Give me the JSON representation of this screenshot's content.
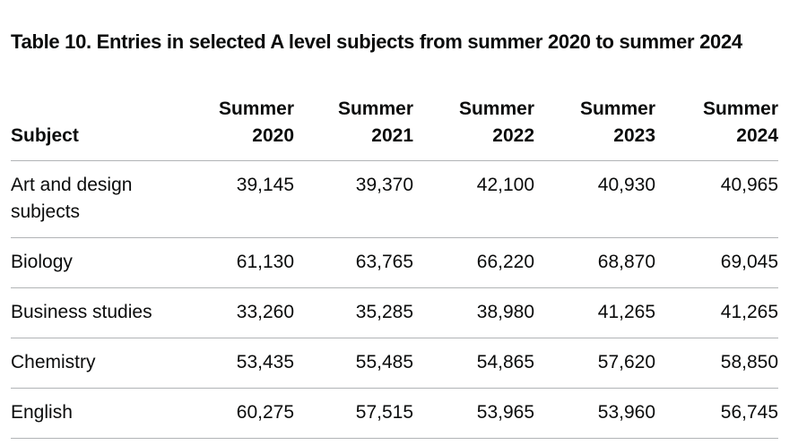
{
  "title": "Table 10. Entries in selected A level subjects from summer 2020 to summer 2024",
  "table": {
    "columns": {
      "subject": "Subject",
      "years": [
        {
          "line1": "Summer",
          "line2": "2020"
        },
        {
          "line1": "Summer",
          "line2": "2021"
        },
        {
          "line1": "Summer",
          "line2": "2022"
        },
        {
          "line1": "Summer",
          "line2": "2023"
        },
        {
          "line1": "Summer",
          "line2": "2024"
        }
      ]
    },
    "rows": [
      {
        "subject": "Art and design subjects",
        "values": [
          "39,145",
          "39,370",
          "42,100",
          "40,930",
          "40,965"
        ]
      },
      {
        "subject": "Biology",
        "values": [
          "61,130",
          "63,765",
          "66,220",
          "68,870",
          "69,045"
        ]
      },
      {
        "subject": "Business studies",
        "values": [
          "33,260",
          "35,285",
          "38,980",
          "41,265",
          "41,265"
        ]
      },
      {
        "subject": "Chemistry",
        "values": [
          "53,435",
          "55,485",
          "54,865",
          "57,620",
          "58,850"
        ]
      },
      {
        "subject": "English",
        "values": [
          "60,275",
          "57,515",
          "53,965",
          "53,960",
          "56,745"
        ]
      }
    ]
  },
  "colors": {
    "text": "#0b0c0c",
    "border": "#b1b4b6",
    "background": "#ffffff"
  }
}
